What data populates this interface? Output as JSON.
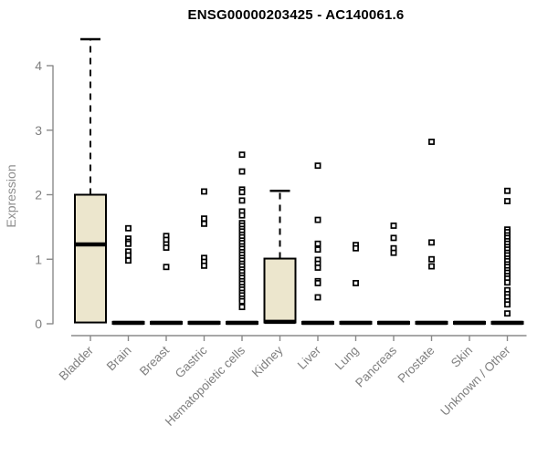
{
  "chart_data": {
    "type": "boxplot",
    "title": "ENSG00000203425 - AC140061.6",
    "ylabel": "Expression",
    "xlabel": "",
    "ylim": [
      0,
      4.5
    ],
    "yticks": [
      0,
      1,
      2,
      3,
      4
    ],
    "grid": false,
    "box_fill_color": "#ece6cd",
    "box_line_color": "#000000",
    "axis_color": "#8a8a8a",
    "tick_label_color": "#7f7f7f",
    "categories": [
      "Bladder",
      "Brain",
      "Breast",
      "Gastric",
      "Hematopoietic cells",
      "Kidney",
      "Liver",
      "Lung",
      "Pancreas",
      "Prostate",
      "Skin",
      "Unknown / Other"
    ],
    "boxes": [
      {
        "category": "Bladder",
        "q1": 0.02,
        "median": 1.23,
        "q3": 2.0,
        "whisker_low": 0.02,
        "whisker_high": 4.41,
        "outliers": []
      },
      {
        "category": "Brain",
        "q1": 0,
        "median": 0.015,
        "q3": 0.03,
        "whisker_low": 0,
        "whisker_high": 0.03,
        "outliers": [
          1.48,
          1.32,
          1.27,
          1.24,
          1.12,
          1.06,
          0.98
        ]
      },
      {
        "category": "Breast",
        "q1": 0,
        "median": 0.015,
        "q3": 0.03,
        "whisker_low": 0,
        "whisker_high": 0.03,
        "outliers": [
          1.36,
          1.3,
          1.23,
          1.18,
          0.88
        ]
      },
      {
        "category": "Gastric",
        "q1": 0,
        "median": 0.015,
        "q3": 0.03,
        "whisker_low": 0,
        "whisker_high": 0.03,
        "outliers": [
          2.05,
          1.63,
          1.55,
          1.02,
          0.96,
          0.9
        ]
      },
      {
        "category": "Hematopoietic cells",
        "q1": 0,
        "median": 0.015,
        "q3": 0.03,
        "whisker_low": 0,
        "whisker_high": 0.03,
        "outliers": [
          2.62,
          2.36,
          2.08,
          2.04,
          1.91,
          1.74,
          1.68,
          1.56,
          1.52,
          1.47,
          1.43,
          1.38,
          1.34,
          1.29,
          1.25,
          1.2,
          1.16,
          1.11,
          1.07,
          1.02,
          0.98,
          0.93,
          0.89,
          0.84,
          0.8,
          0.75,
          0.71,
          0.66,
          0.62,
          0.57,
          0.53,
          0.48,
          0.44,
          0.39,
          0.35,
          0.26
        ]
      },
      {
        "category": "Kidney",
        "q1": 0.02,
        "median": 0.03,
        "q3": 1.01,
        "whisker_low": 0.02,
        "whisker_high": 2.06,
        "outliers": []
      },
      {
        "category": "Liver",
        "q1": 0,
        "median": 0.015,
        "q3": 0.03,
        "whisker_low": 0,
        "whisker_high": 0.03,
        "outliers": [
          2.45,
          1.61,
          1.24,
          1.15,
          0.99,
          0.93,
          0.87,
          0.66,
          0.63,
          0.41
        ]
      },
      {
        "category": "Lung",
        "q1": 0,
        "median": 0.015,
        "q3": 0.03,
        "whisker_low": 0,
        "whisker_high": 0.03,
        "outliers": [
          1.22,
          1.17,
          0.63
        ]
      },
      {
        "category": "Pancreas",
        "q1": 0,
        "median": 0.015,
        "q3": 0.03,
        "whisker_low": 0,
        "whisker_high": 0.03,
        "outliers": [
          1.52,
          1.33,
          1.17,
          1.1
        ]
      },
      {
        "category": "Prostate",
        "q1": 0,
        "median": 0.015,
        "q3": 0.03,
        "whisker_low": 0,
        "whisker_high": 0.03,
        "outliers": [
          2.82,
          1.26,
          1.0,
          0.89
        ]
      },
      {
        "category": "Skin",
        "q1": 0,
        "median": 0.015,
        "q3": 0.03,
        "whisker_low": 0,
        "whisker_high": 0.03,
        "outliers": []
      },
      {
        "category": "Unknown / Other",
        "q1": 0,
        "median": 0.015,
        "q3": 0.03,
        "whisker_low": 0,
        "whisker_high": 0.03,
        "outliers": [
          2.06,
          1.9,
          1.46,
          1.42,
          1.37,
          1.33,
          1.28,
          1.24,
          1.19,
          1.15,
          1.1,
          1.06,
          1.01,
          0.97,
          0.92,
          0.88,
          0.83,
          0.79,
          0.74,
          0.7,
          0.64,
          0.52,
          0.46,
          0.41,
          0.35,
          0.3,
          0.16
        ]
      }
    ]
  }
}
